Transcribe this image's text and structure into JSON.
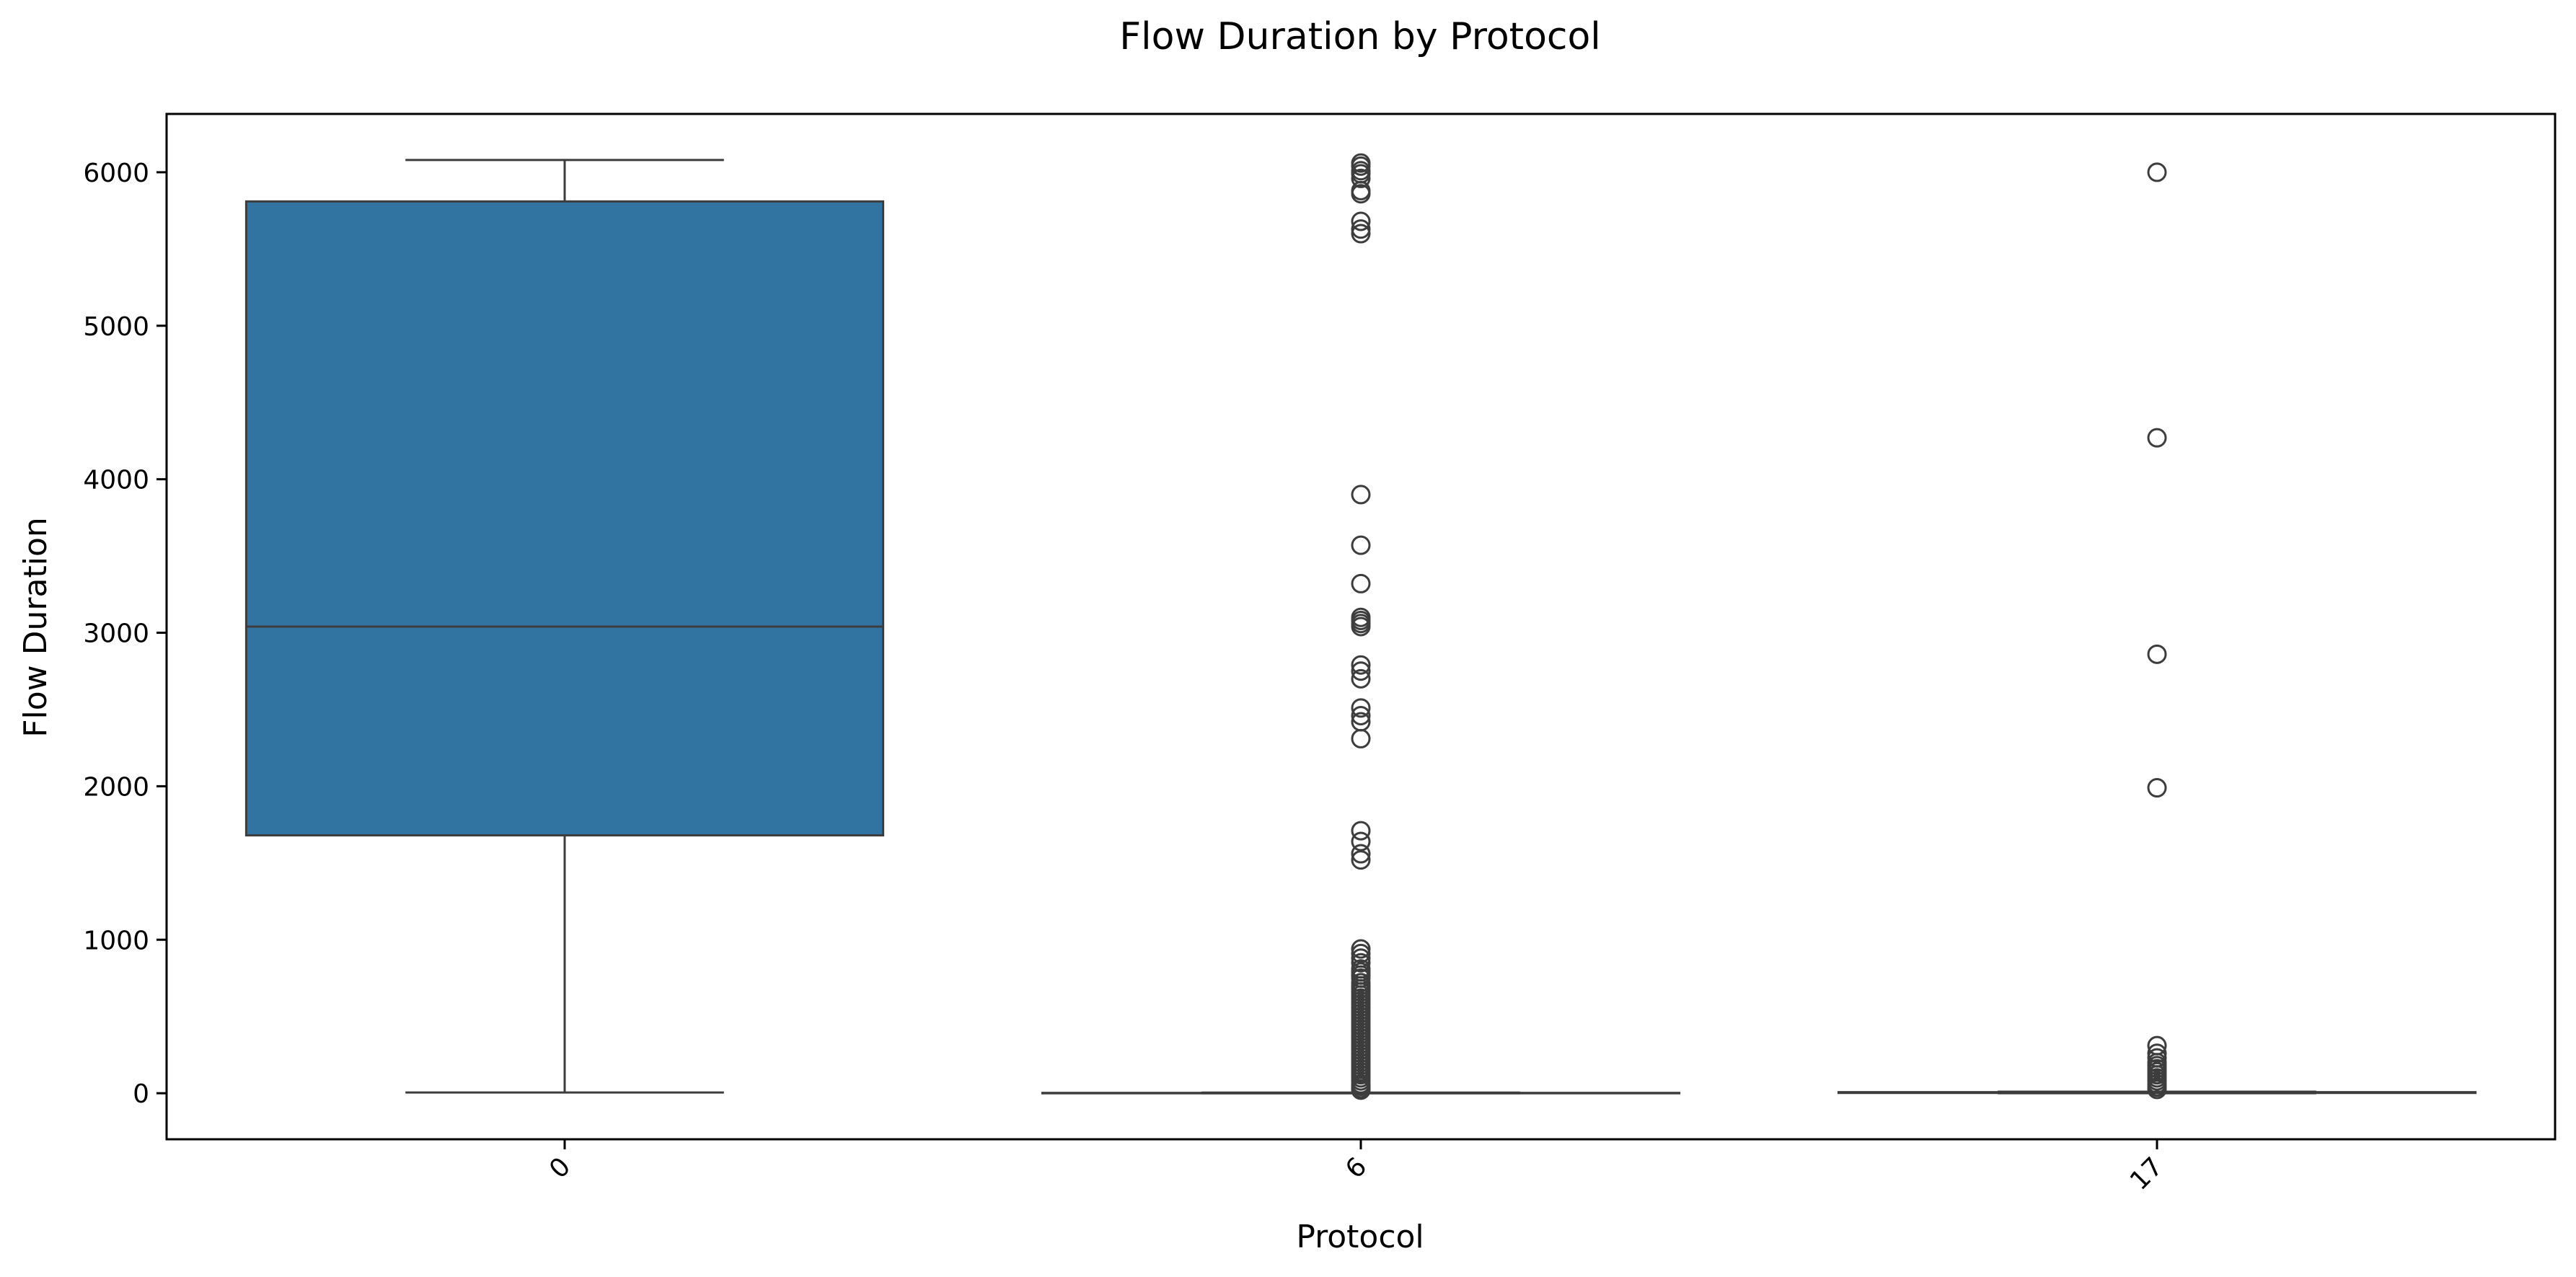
{
  "chart_data": {
    "type": "box",
    "title": "Flow Duration by Protocol",
    "xlabel": "Protocol",
    "ylabel": "Flow Duration",
    "categories": [
      "0",
      "6",
      "17"
    ],
    "ylim": [
      -300,
      6380
    ],
    "yticks": [
      0,
      1000,
      2000,
      3000,
      4000,
      5000,
      6000
    ],
    "grid": false,
    "colors": {
      "box_fill": "#3274a1",
      "line": "#3d3d3d",
      "axes": "#000000"
    },
    "boxes": [
      {
        "category": "0",
        "whisker_low": 5,
        "q1": 1680,
        "median": 3040,
        "q3": 5810,
        "whisker_high": 6080,
        "outliers": []
      },
      {
        "category": "6",
        "whisker_low": 0,
        "q1": 0,
        "median": 1,
        "q3": 2,
        "whisker_high": 4,
        "outliers": [
          6060,
          6040,
          6010,
          5990,
          5960,
          5880,
          5860,
          5680,
          5630,
          5600,
          3900,
          3570,
          3320,
          3100,
          3080,
          3060,
          3040,
          2790,
          2750,
          2700,
          2510,
          2460,
          2420,
          2310,
          1710,
          1640,
          1560,
          1520,
          940,
          910,
          880,
          850,
          810,
          790,
          770,
          750,
          720,
          700,
          680,
          660,
          640,
          620,
          600,
          580,
          560,
          540,
          520,
          500,
          480,
          460,
          440,
          420,
          400,
          380,
          360,
          340,
          320,
          300,
          280,
          260,
          240,
          220,
          200,
          180,
          160,
          140,
          120,
          100,
          80,
          60,
          45,
          30,
          20
        ]
      },
      {
        "category": "17",
        "whisker_low": 0,
        "q1": 2,
        "median": 4,
        "q3": 7,
        "whisker_high": 10,
        "outliers": [
          6000,
          4270,
          2860,
          1990,
          310,
          260,
          230,
          200,
          180,
          160,
          140,
          120,
          100,
          80,
          60,
          40,
          25
        ]
      }
    ]
  }
}
